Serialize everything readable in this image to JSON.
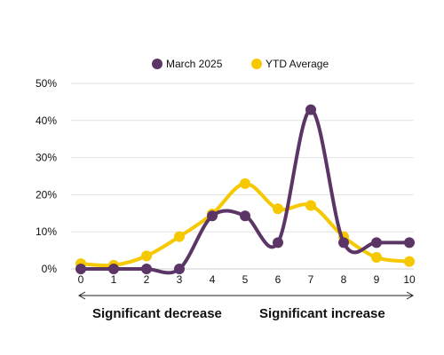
{
  "chart_data": {
    "type": "line",
    "x": [
      0,
      1,
      2,
      3,
      4,
      5,
      6,
      7,
      8,
      9,
      10
    ],
    "y_ticks": [
      "0%",
      "10%",
      "20%",
      "30%",
      "40%",
      "50%"
    ],
    "ylim": [
      0,
      50
    ],
    "y_unit": "%",
    "grid": true,
    "legend_position": "top-center",
    "series": [
      {
        "name": "March 2025",
        "color": "#5b3566",
        "values": [
          0,
          0,
          0,
          0,
          14.3,
          14.3,
          7.1,
          42.9,
          7.1,
          7.1,
          7.1
        ]
      },
      {
        "name": "YTD Average",
        "color": "#f5c800",
        "values": [
          1.4,
          1.0,
          3.5,
          8.7,
          14.8,
          23.0,
          16.2,
          17.1,
          8.7,
          3.1,
          2.0
        ]
      }
    ],
    "annotations": {
      "left": "Significant decrease",
      "right": "Significant increase"
    }
  }
}
